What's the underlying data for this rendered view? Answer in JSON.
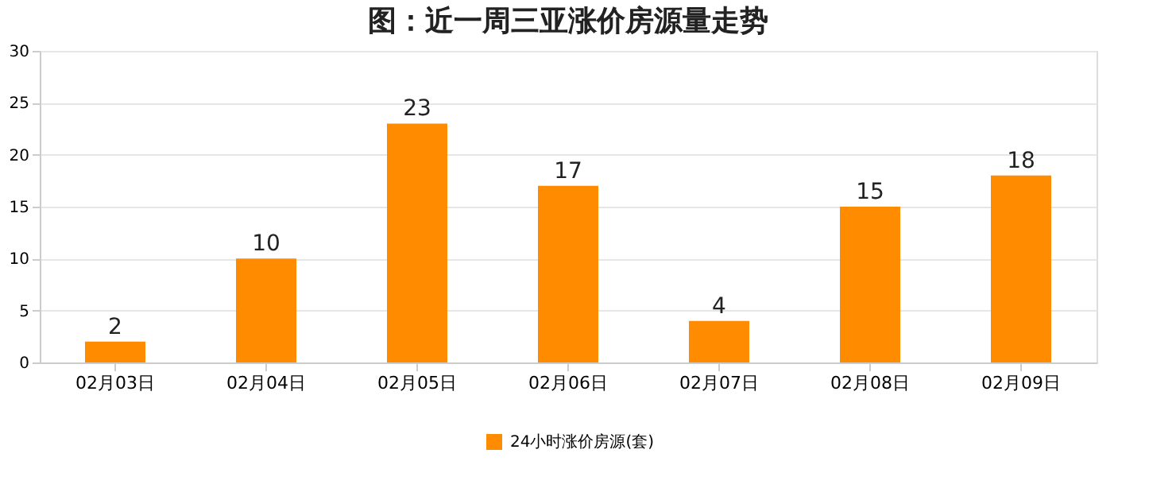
{
  "chart_data": {
    "type": "bar",
    "title": "图：近一周三亚涨价房源量走势",
    "categories": [
      "02月03日",
      "02月04日",
      "02月05日",
      "02月06日",
      "02月07日",
      "02月08日",
      "02月09日"
    ],
    "series": [
      {
        "name": "24小时涨价房源(套)",
        "color": "#ff8c00",
        "values": [
          2,
          10,
          23,
          17,
          4,
          15,
          18
        ]
      }
    ],
    "ylim": [
      0,
      30
    ],
    "yticks": [
      0,
      5,
      10,
      15,
      20,
      25,
      30
    ],
    "grid": "y",
    "legend": "bottom",
    "data_labels": true
  }
}
